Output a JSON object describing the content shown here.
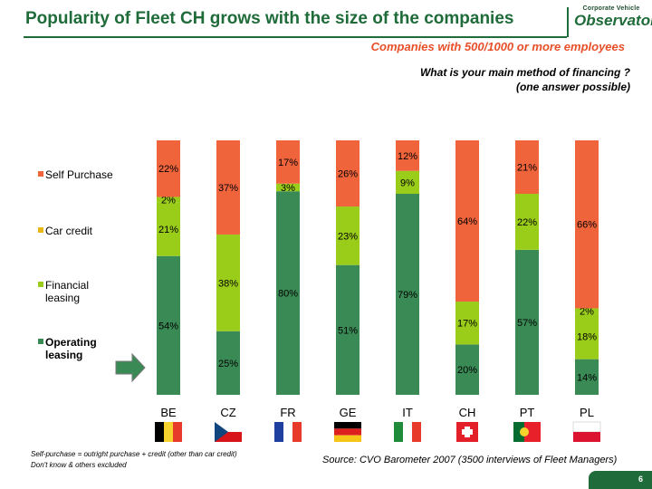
{
  "header": {
    "title": "Popularity of Fleet CH grows with the size of the companies",
    "subtitle": "Companies with 500/1000 or more employees",
    "question_line1": "What is your main method of financing ?",
    "question_line2": "(one answer possible)",
    "logo_line1": "Corporate Vehicle",
    "logo_line2": "Observatory"
  },
  "footer": {
    "note_line1": "Self-purchase = outright purchase + credit (other than car credit)",
    "note_line2": "Don't know & others excluded",
    "source": "Source: CVO Barometer 2007 (3500 interviews of Fleet Managers)",
    "page_number": "6"
  },
  "colors": {
    "self_purchase": "#f0643c",
    "car_credit": "#9acd1a",
    "financial_leasing": "#9acd1a",
    "operating_leasing": "#3a8a55",
    "title": "#1f6b39",
    "subtitle": "#e8502a"
  },
  "chart_data": {
    "type": "bar",
    "stacked": true,
    "title": "What is your main method of financing ? (one answer possible)",
    "categories": [
      "BE",
      "CZ",
      "FR",
      "GE",
      "IT",
      "CH",
      "PT",
      "PL"
    ],
    "series": [
      {
        "name": "Operating leasing",
        "values": [
          54,
          25,
          80,
          51,
          79,
          20,
          57,
          14
        ],
        "labels": [
          "54%",
          "25%",
          "80%",
          "51%",
          "79%",
          "20%",
          "57%",
          "14%"
        ]
      },
      {
        "name": "Financial leasing",
        "values": [
          21,
          38,
          0,
          23,
          9,
          17,
          22,
          18
        ],
        "labels": [
          "21%",
          "38%",
          "",
          "23%",
          "9%",
          "17%",
          "22%",
          "18%"
        ]
      },
      {
        "name": "Car credit",
        "values": [
          2,
          0,
          3,
          0,
          0,
          0,
          0,
          2
        ],
        "labels": [
          "2%",
          "",
          "3%",
          "",
          "",
          "",
          "",
          "2%"
        ]
      },
      {
        "name": "Self Purchase",
        "values": [
          22,
          37,
          17,
          26,
          12,
          64,
          21,
          66
        ],
        "labels": [
          "22%",
          "37%",
          "17%",
          "26%",
          "12%",
          "64%",
          "21%",
          "66%"
        ]
      }
    ],
    "legend": [
      "Self Purchase",
      "Car credit",
      "Financial leasing",
      "Operating leasing"
    ],
    "ylim": [
      0,
      100
    ],
    "grid": false
  }
}
